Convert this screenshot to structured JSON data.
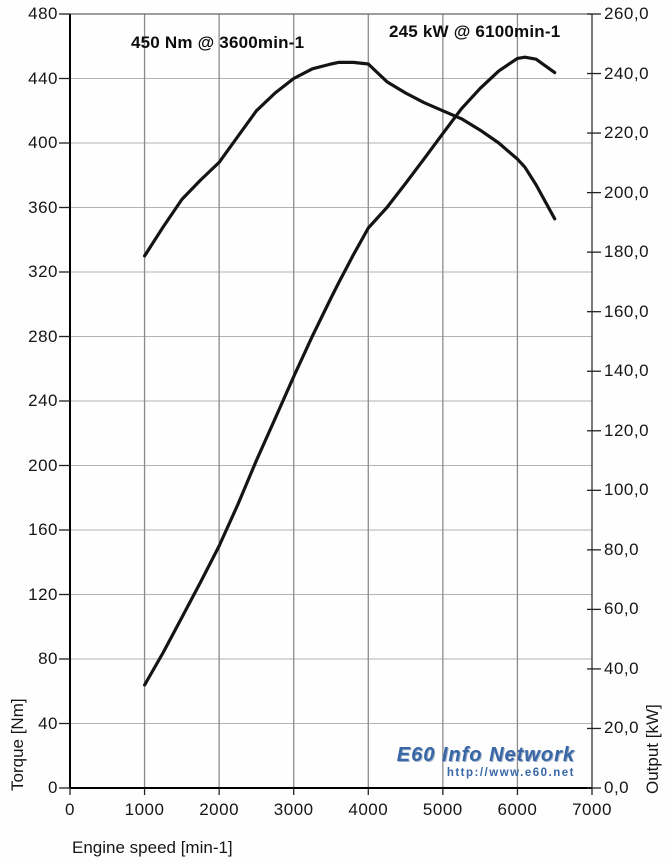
{
  "chart": {
    "annotations": {
      "torque_peak": "450 Nm @ 3600min-1",
      "power_peak": "245 kW @ 6100min-1"
    },
    "watermark": {
      "title": "E60 Info Network",
      "url": "http://www.e60.net",
      "color": "#3866a6"
    },
    "colors": {
      "curve": "#141414",
      "grid_vertical": "#8c8c8c",
      "grid_horizontal": "#b3b3b3",
      "axis": "#000000",
      "tick": "#222222"
    }
  },
  "chart_data": {
    "type": "line",
    "title": "",
    "xlabel": "Engine speed [min-1]",
    "ylabel_left": "Torque [Nm]",
    "ylabel_right": "Output [kW]",
    "xlim": [
      0,
      7000
    ],
    "ylim_left": [
      0,
      480
    ],
    "ylim_right": [
      0,
      260
    ],
    "grid": true,
    "legend": false,
    "x_ticks": [
      0,
      1000,
      2000,
      3000,
      4000,
      5000,
      6000,
      7000
    ],
    "left_ticks": [
      0,
      40,
      80,
      120,
      160,
      200,
      240,
      280,
      320,
      360,
      400,
      440,
      480
    ],
    "right_ticks": [
      0,
      20,
      40,
      60,
      80,
      100,
      120,
      140,
      160,
      180,
      200,
      220,
      240,
      260
    ],
    "right_tick_labels": [
      "0,0",
      "20,0",
      "40,0",
      "60,0",
      "80,0",
      "100,0",
      "120,0",
      "140,0",
      "160,0",
      "180,0",
      "200,0",
      "220,0",
      "240,0",
      "260,0"
    ],
    "x": [
      1000,
      1250,
      1500,
      1750,
      2000,
      2250,
      2500,
      2750,
      3000,
      3250,
      3500,
      3600,
      3800,
      4000,
      4250,
      4500,
      4750,
      5000,
      5250,
      5500,
      5750,
      6000,
      6100,
      6250,
      6500
    ],
    "series": [
      {
        "name": "Torque [Nm]",
        "axis": "left",
        "peak": {
          "value": 450,
          "rpm": 3600
        },
        "values": [
          330,
          348,
          365,
          377,
          388,
          404,
          420,
          431,
          440,
          446,
          449,
          450,
          450,
          449,
          438,
          431,
          425,
          420,
          415,
          408,
          400,
          390,
          385,
          374,
          353
        ]
      },
      {
        "name": "Output [kW]",
        "axis": "right",
        "peak": {
          "value": 245,
          "rpm": 6100
        },
        "values": [
          34.6,
          45.5,
          57.3,
          69.1,
          81.3,
          95.2,
          110.0,
          124.1,
          138.2,
          151.8,
          164.6,
          169.6,
          179.1,
          188.1,
          195.0,
          203.1,
          211.4,
          219.9,
          228.2,
          235.0,
          240.9,
          245.1,
          245.5,
          244.8,
          240.3
        ]
      }
    ]
  }
}
